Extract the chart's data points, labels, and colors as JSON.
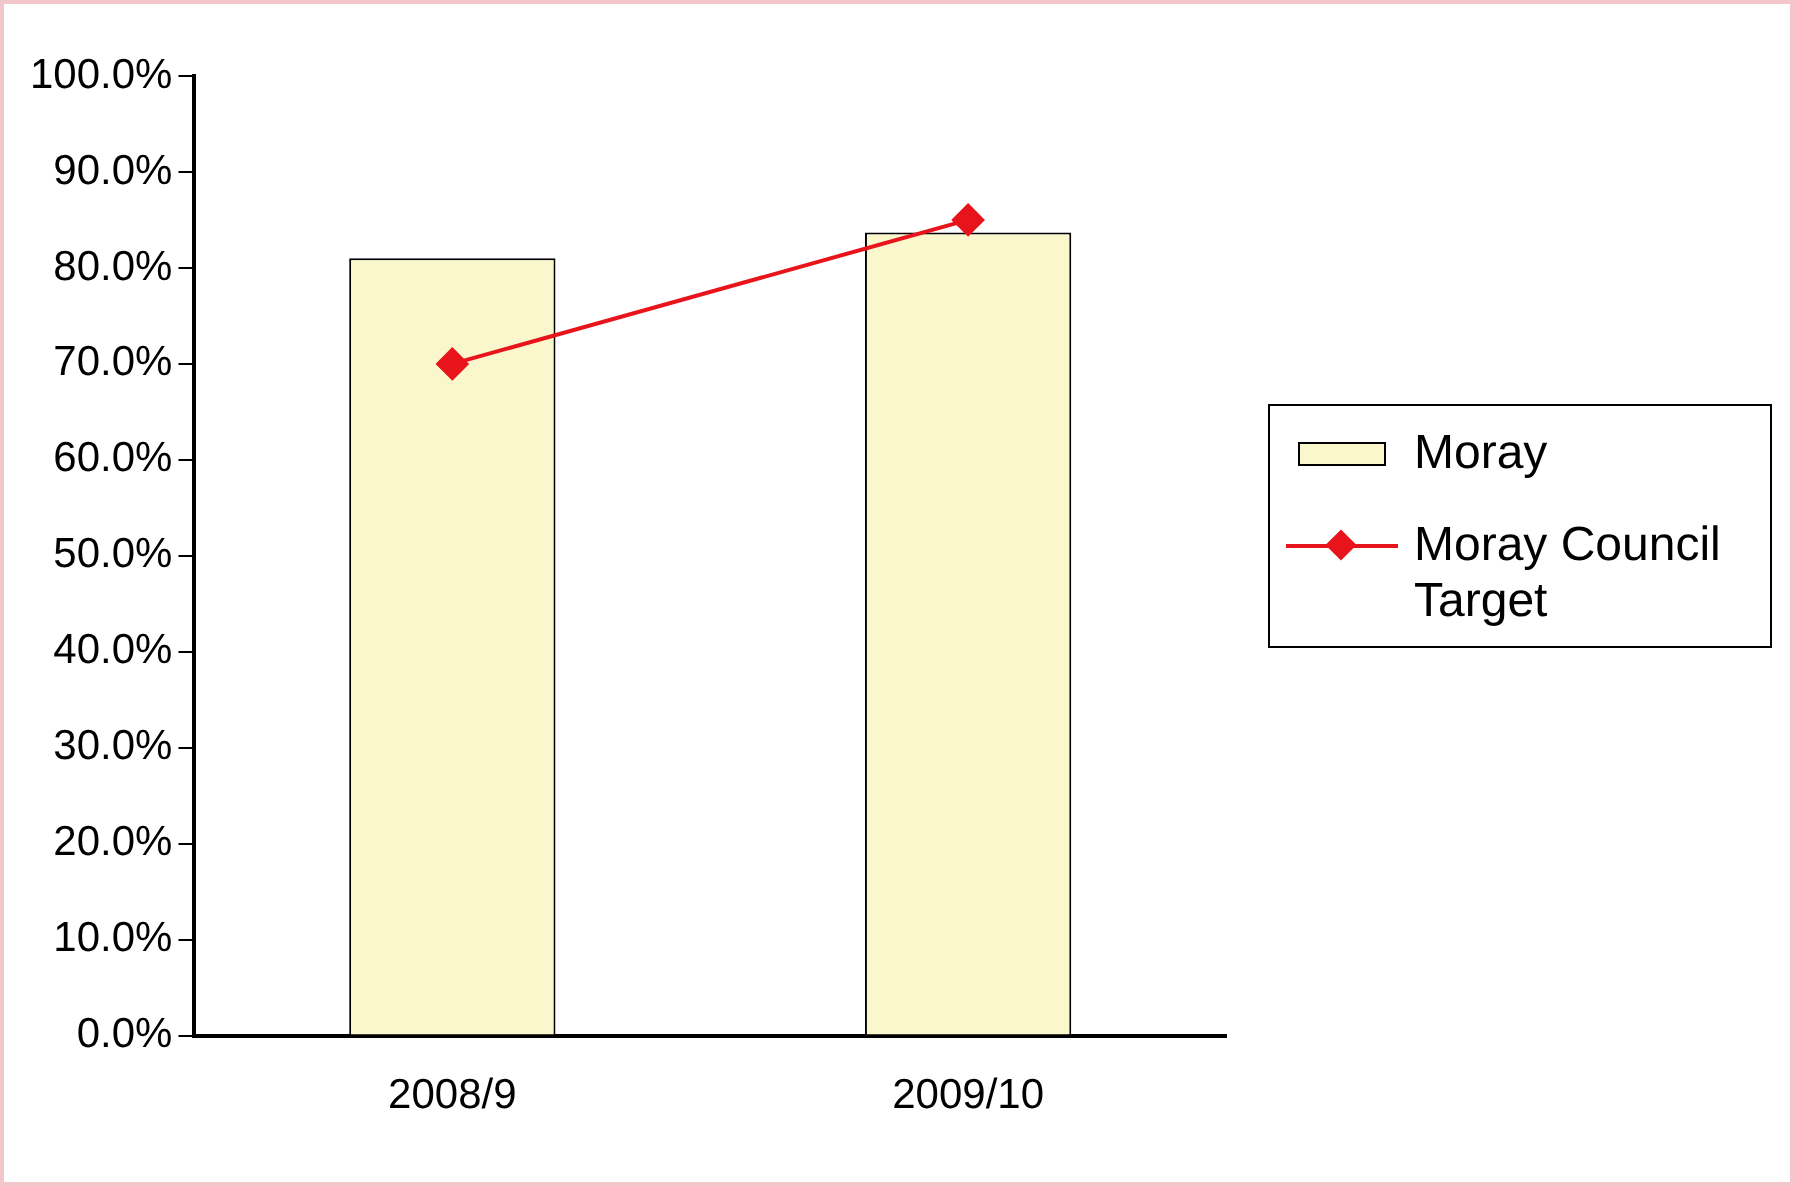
{
  "chart_data": {
    "type": "bar",
    "categories": [
      "2008/9",
      "2009/10"
    ],
    "series": [
      {
        "name": "Moray",
        "color": "#fbf7cc",
        "values": [
          81.0,
          83.7
        ]
      },
      {
        "name": "Moray Council Target",
        "type": "line",
        "color": "#e8141b",
        "values": [
          70,
          85
        ],
        "marker": "diamond"
      }
    ],
    "ylim": [
      0,
      100
    ],
    "yticks": [
      {
        "value": 0,
        "label": "0.0%"
      },
      {
        "value": 10,
        "label": "10.0%"
      },
      {
        "value": 20,
        "label": "20.0%"
      },
      {
        "value": 30,
        "label": "30.0%"
      },
      {
        "value": 40,
        "label": "40.0%"
      },
      {
        "value": 50,
        "label": "50.0%"
      },
      {
        "value": 60,
        "label": "60.0%"
      },
      {
        "value": 70,
        "label": "70.0%"
      },
      {
        "value": 80,
        "label": "80.0%"
      },
      {
        "value": 90,
        "label": "90.0%"
      },
      {
        "value": 100,
        "label": "100.0%"
      }
    ],
    "grid": false,
    "legend": "right"
  }
}
